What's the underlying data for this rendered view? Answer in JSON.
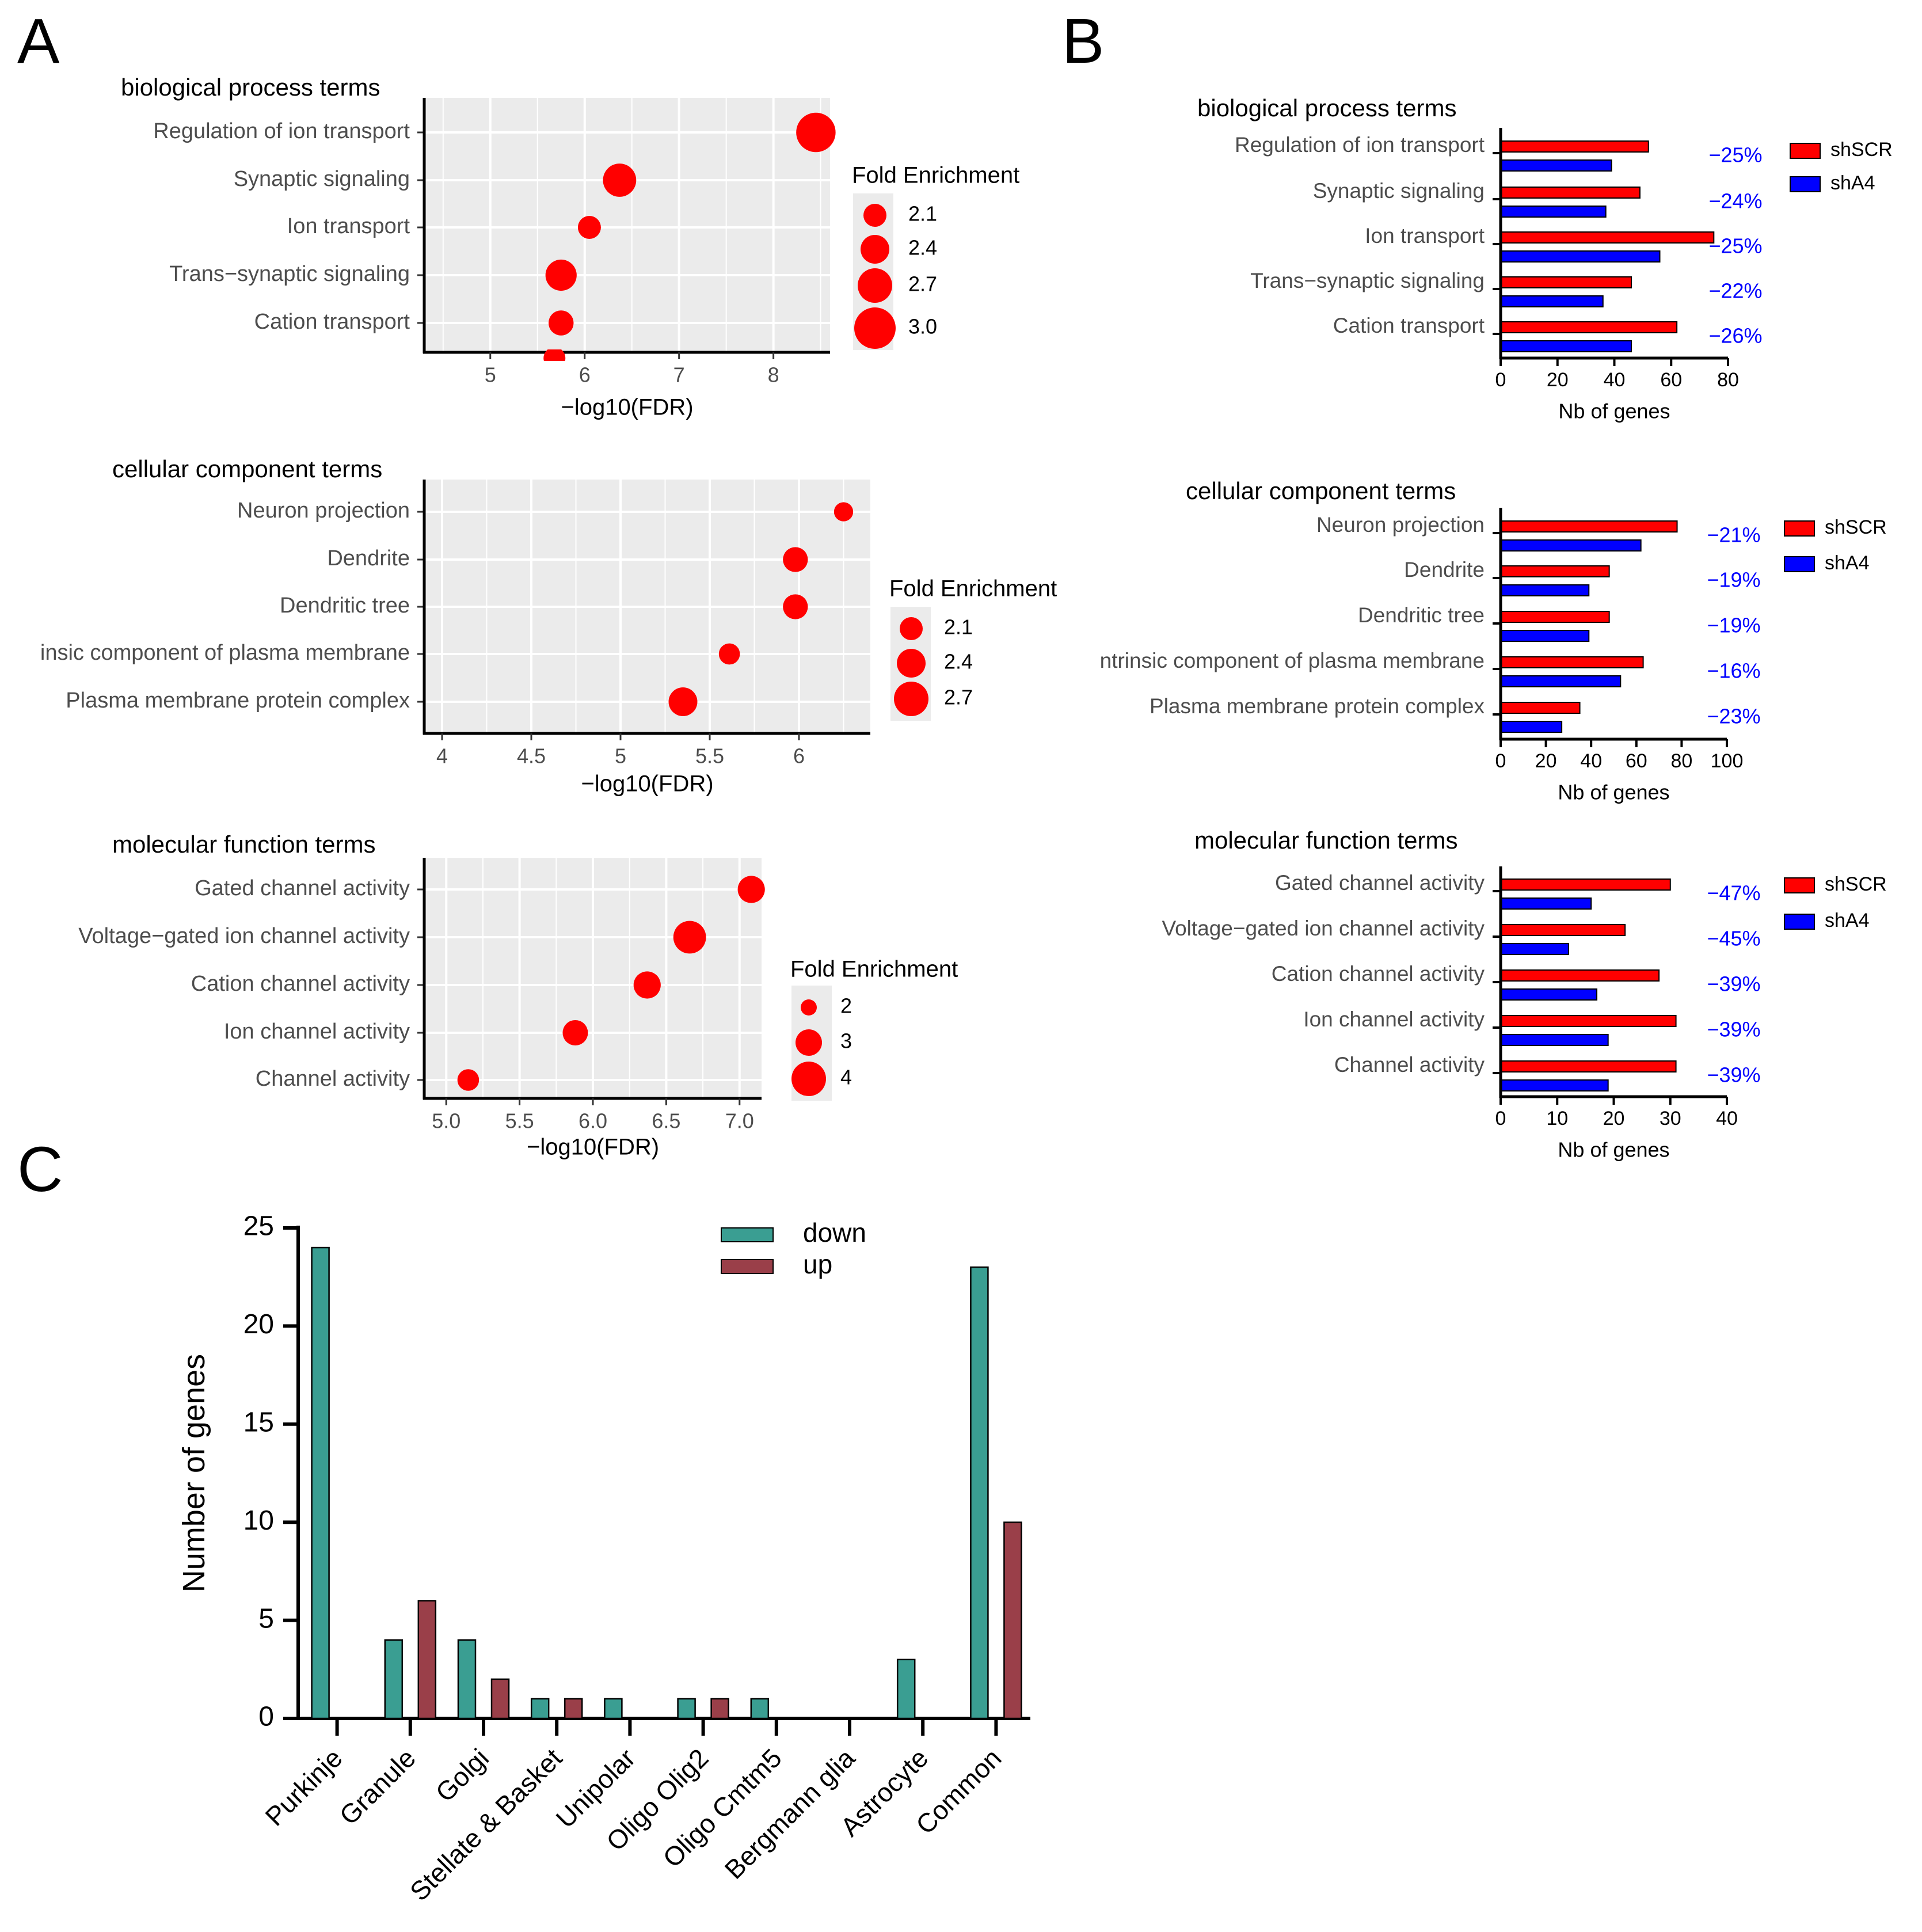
{
  "panel_labels": {
    "a": "A",
    "b": "B",
    "c": "C"
  },
  "colors": {
    "dot": "#ff0000",
    "panel_bg": "#ebebeb",
    "grid": "#ffffff",
    "shSCR": "#ff0000",
    "shA4": "#0000ff",
    "pct": "#0000ff",
    "down": "#3a9e92",
    "up": "#9a3f49"
  },
  "chart_data": [
    {
      "id": "a1",
      "type": "scatter",
      "title": "biological process terms",
      "xlabel": "−log10(FDR)",
      "xlim": [
        4.3,
        8.6
      ],
      "xticks": [
        5,
        6,
        7,
        8
      ],
      "categories": [
        "Regulation of ion transport",
        "Synaptic signaling",
        "Ion transport",
        "Trans−synaptic signaling",
        "Cation transport"
      ],
      "x": [
        8.45,
        6.37,
        6.05,
        5.75,
        5.75
      ],
      "size": [
        2.9,
        2.6,
        2.1,
        2.5,
        2.2
      ],
      "legend": {
        "title": "Fold Enrichment",
        "values": [
          2.1,
          2.4,
          2.7,
          3.0
        ]
      }
    },
    {
      "id": "a2",
      "type": "scatter",
      "title": "cellular component terms",
      "xlabel": "−log10(FDR)",
      "xlim": [
        3.9,
        6.4
      ],
      "xticks": [
        4.0,
        4.5,
        5.0,
        5.5,
        6.0
      ],
      "categories": [
        "Neuron projection",
        "Dendrite",
        "Dendritic tree",
        "insic component of plasma membrane",
        "Plasma membrane protein complex"
      ],
      "x": [
        6.25,
        5.98,
        5.98,
        5.61,
        5.35
      ],
      "size": [
        1.9,
        2.2,
        2.2,
        2.0,
        2.4
      ],
      "legend": {
        "title": "Fold Enrichment",
        "values": [
          2.1,
          2.4,
          2.7
        ]
      }
    },
    {
      "id": "a3",
      "type": "scatter",
      "title": "molecular function terms",
      "xlabel": "−log10(FDR)",
      "xlim": [
        4.85,
        7.15
      ],
      "xticks": [
        "5.0",
        "5.5",
        "6.0",
        "6.5",
        "7.0"
      ],
      "categories": [
        "Gated channel activity",
        "Voltage−gated ion channel activity",
        "Cation channel activity",
        "Ion channel activity",
        "Channel activity"
      ],
      "x": [
        7.08,
        6.66,
        6.37,
        5.88,
        5.15
      ],
      "size": [
        3.2,
        3.8,
        3.2,
        3.0,
        2.6
      ],
      "legend": {
        "title": "Fold Enrichment",
        "values": [
          2,
          3,
          4
        ]
      }
    },
    {
      "id": "b1",
      "type": "bar",
      "orientation": "horizontal",
      "title": "biological process terms",
      "xlabel": "Nb of genes",
      "xlim": [
        0,
        80
      ],
      "xticks": [
        0,
        20,
        40,
        60,
        80
      ],
      "categories": [
        "Regulation of ion transport",
        "Synaptic signaling",
        "Ion transport",
        "Trans−synaptic signaling",
        "Cation transport"
      ],
      "series": [
        {
          "name": "shSCR",
          "values": [
            52,
            49,
            75,
            46,
            62
          ]
        },
        {
          "name": "shA4",
          "values": [
            39,
            37,
            56,
            36,
            46
          ]
        }
      ],
      "annotations": [
        "−25%",
        "−24%",
        "−25%",
        "−22%",
        "−26%"
      ]
    },
    {
      "id": "b2",
      "type": "bar",
      "orientation": "horizontal",
      "title": "cellular component terms",
      "xlabel": "Nb of genes",
      "xlim": [
        0,
        100
      ],
      "xticks": [
        0,
        20,
        40,
        60,
        80,
        100
      ],
      "categories": [
        "Neuron projection",
        "Dendrite",
        "Dendritic tree",
        "ntrinsic component of plasma membrane",
        "Plasma membrane protein complex"
      ],
      "series": [
        {
          "name": "shSCR",
          "values": [
            78,
            48,
            48,
            63,
            35
          ]
        },
        {
          "name": "shA4",
          "values": [
            62,
            39,
            39,
            53,
            27
          ]
        }
      ],
      "annotations": [
        "−21%",
        "−19%",
        "−19%",
        "−16%",
        "−23%"
      ]
    },
    {
      "id": "b3",
      "type": "bar",
      "orientation": "horizontal",
      "title": "molecular function terms",
      "xlabel": "Nb of genes",
      "xlim": [
        0,
        40
      ],
      "xticks": [
        0,
        10,
        20,
        30,
        40
      ],
      "categories": [
        "Gated channel activity",
        "Voltage−gated ion channel activity",
        "Cation channel activity",
        "Ion channel activity",
        "Channel activity"
      ],
      "series": [
        {
          "name": "shSCR",
          "values": [
            30,
            22,
            28,
            31,
            31
          ]
        },
        {
          "name": "shA4",
          "values": [
            16,
            12,
            17,
            19,
            19
          ]
        }
      ],
      "annotations": [
        "−47%",
        "−45%",
        "−39%",
        "−39%",
        "−39%"
      ]
    },
    {
      "id": "c",
      "type": "bar",
      "orientation": "vertical",
      "title": "",
      "ylabel": "Number of genes",
      "ylim": [
        0,
        25
      ],
      "yticks": [
        0,
        5,
        10,
        15,
        20,
        25
      ],
      "categories": [
        "Purkinje",
        "Granule",
        "Golgi",
        "Stellate & Basket",
        "Unipolar",
        "Oligo Olig2",
        "Oligo Cmtm5",
        "Bergmann glia",
        "Astrocyte",
        "Common"
      ],
      "series": [
        {
          "name": "down",
          "values": [
            24,
            4,
            4,
            1,
            1,
            1,
            1,
            0,
            3,
            23
          ]
        },
        {
          "name": "up",
          "values": [
            0,
            6,
            2,
            1,
            0,
            1,
            0,
            0,
            0,
            10
          ]
        }
      ]
    }
  ]
}
